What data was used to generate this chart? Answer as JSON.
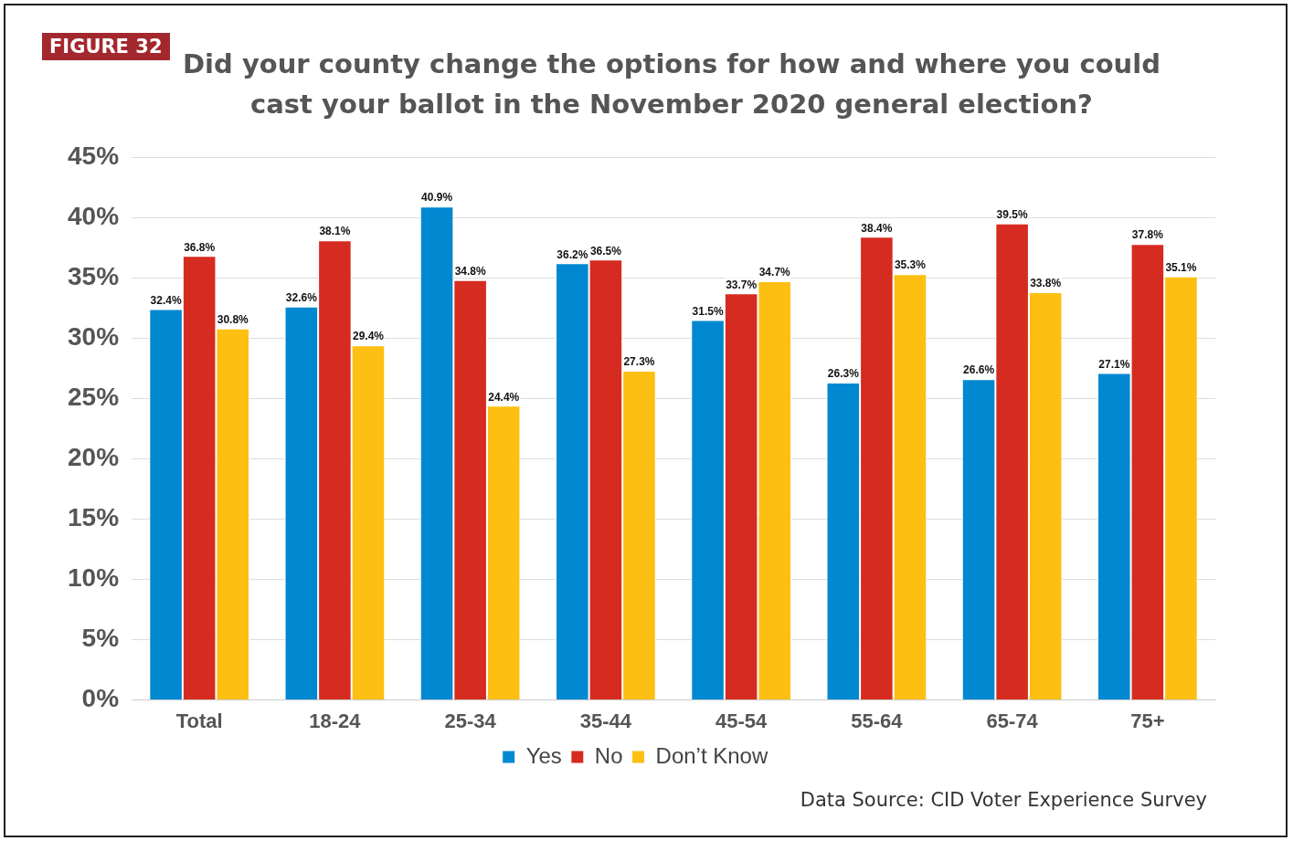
{
  "chart_data": {
    "type": "bar",
    "title": "Did your county change the options for how and where you could cast your ballot in the November 2020 general election?",
    "categories": [
      "Total",
      "18-24",
      "25-34",
      "35-44",
      "45-54",
      "55-64",
      "65-74",
      "75+"
    ],
    "series": [
      {
        "name": "Yes",
        "color": "#0088d1",
        "values": [
          32.4,
          32.6,
          40.9,
          36.2,
          31.5,
          26.3,
          26.6,
          27.1
        ],
        "value_labels": [
          "32.4%",
          "32.6%",
          "40.9%",
          "36.2%",
          "31.5%",
          "26.3%",
          "26.6%",
          "27.1%"
        ]
      },
      {
        "name": "No",
        "color": "#d62b20",
        "values": [
          36.8,
          38.1,
          34.8,
          36.5,
          33.7,
          38.4,
          39.5,
          37.8
        ],
        "value_labels": [
          "36.8%",
          "38.1%",
          "34.8%",
          "36.5%",
          "33.7%",
          "38.4%",
          "39.5%",
          "37.8%"
        ]
      },
      {
        "name": "Don’t Know",
        "color": "#fdbf12",
        "values": [
          30.8,
          29.4,
          24.4,
          27.3,
          34.7,
          35.3,
          33.8,
          35.1
        ],
        "value_labels": [
          "30.8%",
          "29.4%",
          "24.4%",
          "27.3%",
          "34.7%",
          "35.3%",
          "33.8%",
          "35.1%"
        ]
      }
    ],
    "ylim": [
      0,
      45
    ],
    "yticks": [
      {
        "value": 0,
        "label": "0%"
      },
      {
        "value": 5,
        "label": "5%"
      },
      {
        "value": 10,
        "label": "10%"
      },
      {
        "value": 15,
        "label": "15%"
      },
      {
        "value": 20,
        "label": "20%"
      },
      {
        "value": 25,
        "label": "25%"
      },
      {
        "value": 30,
        "label": "30%"
      },
      {
        "value": 35,
        "label": "35%"
      },
      {
        "value": 40,
        "label": "40%"
      },
      {
        "value": 45,
        "label": "45%"
      }
    ],
    "grid": "y",
    "legend": "bottom",
    "annotations": [
      "FIGURE 32",
      "Data Source: CID Voter Experience Survey"
    ]
  }
}
